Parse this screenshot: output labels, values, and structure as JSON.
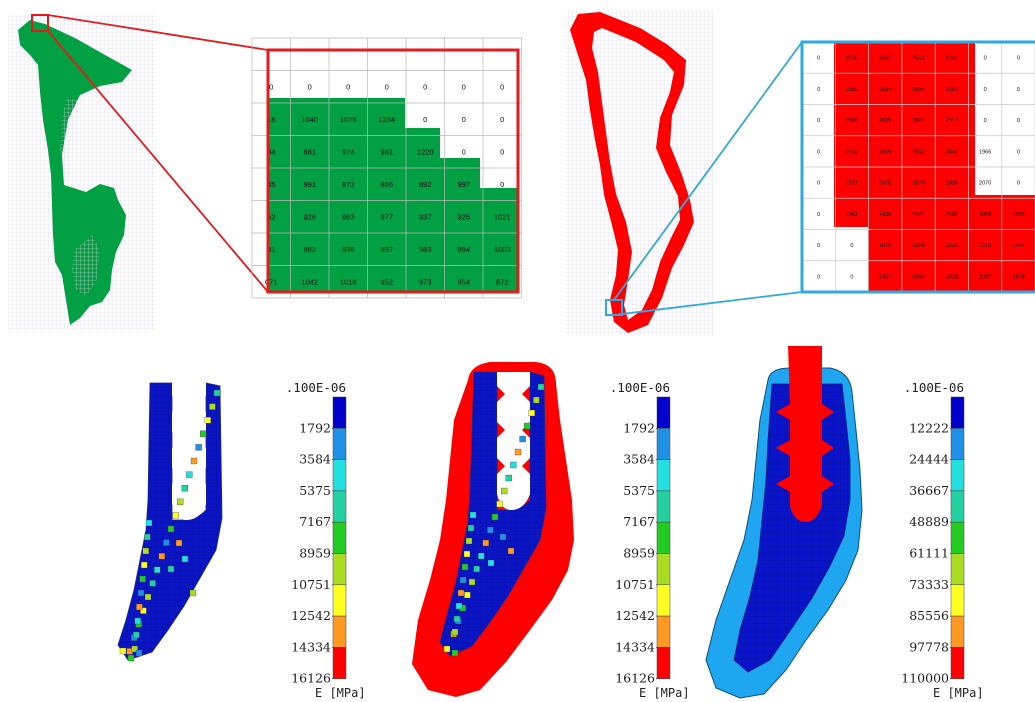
{
  "green_zoom": {
    "rows": [
      [
        "",
        "",
        "",
        "",
        "",
        "",
        ""
      ],
      [
        "0",
        "0",
        "0",
        "0",
        "0",
        "0",
        "0"
      ],
      [
        "18",
        "1040",
        "1075",
        "1234",
        "0",
        "0",
        "0"
      ],
      [
        "84",
        "881",
        "974",
        "981",
        "1220",
        "0",
        "0"
      ],
      [
        "45",
        "991",
        "972",
        "866",
        "892",
        "997",
        "0"
      ],
      [
        "52",
        "926",
        "963",
        "977",
        "937",
        "925",
        "1021"
      ],
      [
        "81",
        "982",
        "936",
        "997",
        "983",
        "994",
        "1003"
      ],
      [
        "071",
        "1042",
        "1018",
        "952",
        "973",
        "954",
        "872"
      ]
    ]
  },
  "red_zoom": {
    "rows": [
      [
        "0",
        "2535",
        "2552",
        "2562",
        "2359",
        "0",
        "0"
      ],
      [
        "0",
        "2580",
        "2584",
        "2584",
        "2257",
        "0",
        "0"
      ],
      [
        "0",
        "2505",
        "2615",
        "2601",
        "2317",
        "0",
        "0"
      ],
      [
        "0",
        "2542",
        "2619",
        "2812",
        "2448",
        "1966",
        "0"
      ],
      [
        "0",
        "2737",
        "2476",
        "2570",
        "2396",
        "2070",
        "0"
      ],
      [
        "0",
        "1461",
        "1420",
        "2101",
        "2508",
        "2068",
        "1855"
      ],
      [
        "0",
        "0",
        "1076",
        "2309",
        "2529",
        "2270",
        "1767"
      ],
      [
        "0",
        "0",
        "1407",
        "2364",
        "2529",
        "2397",
        "1979"
      ]
    ]
  },
  "scales": [
    {
      "header": ".100E-06",
      "values": [
        "1792",
        "3584",
        "5375",
        "7167",
        "8959",
        "10751",
        "12542",
        "14334",
        "16126"
      ],
      "unit": "E  [MPa]"
    },
    {
      "header": ".100E-06",
      "values": [
        "1792",
        "3584",
        "5375",
        "7167",
        "8959",
        "10751",
        "12542",
        "14334",
        "16126"
      ],
      "unit": "E  [MPa]"
    },
    {
      "header": ".100E-06",
      "values": [
        "12222",
        "24444",
        "36667",
        "48889",
        "61111",
        "73333",
        "85556",
        "97778",
        "110000"
      ],
      "unit": "E  [MPa]"
    }
  ],
  "colors": {
    "scale": [
      "#0000cc",
      "#1e90e6",
      "#22e0e0",
      "#22d0a0",
      "#22cc22",
      "#aadd22",
      "#ffff22",
      "#ff9922",
      "#ff0000"
    ],
    "green": "#00a043",
    "red": "#ff0000",
    "light_blue": "#1ea6f0",
    "zoom_red": "#e41a1c",
    "zoom_blue": "#30a8e0",
    "grid_bg": "#f0eff6"
  }
}
